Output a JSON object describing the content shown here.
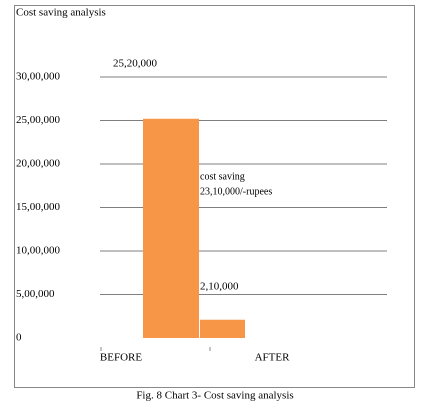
{
  "chart_data": {
    "type": "bar",
    "title": "Cost saving analysis",
    "categories": [
      "BEFORE",
      "AFTER"
    ],
    "values": [
      2520000,
      210000
    ],
    "value_labels": [
      "25,20,000",
      "2,10,000"
    ],
    "color": "#f79646",
    "annotation": [
      "cost saving",
      "23,10,000/-rupees"
    ],
    "caption": "Fig. 8 Chart 3- Cost saving analysis",
    "ylim": [
      0,
      3000000
    ],
    "yticks": [
      {
        "value": 0,
        "label": "0"
      },
      {
        "value": 500000,
        "label": "5,00,000"
      },
      {
        "value": 1000000,
        "label": "10,00,000"
      },
      {
        "value": 1500000,
        "label": "15,00,000"
      },
      {
        "value": 2000000,
        "label": "20,00,000"
      },
      {
        "value": 2500000,
        "label": "25,00,000"
      },
      {
        "value": 3000000,
        "label": "30,00,000"
      }
    ],
    "grid": true
  }
}
